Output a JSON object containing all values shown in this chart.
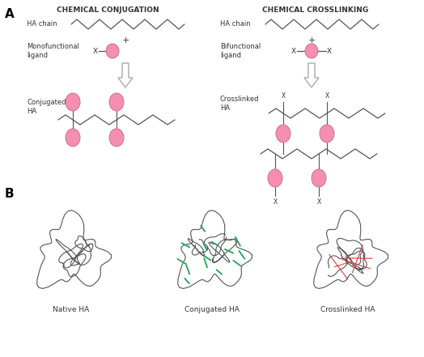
{
  "title_A": "A",
  "title_B": "B",
  "label_chem_conj": "CHEMICAL CONJUGATION",
  "label_chem_cross": "CHEMICAL CROSSLINKING",
  "label_ha_chain": "HA chain",
  "label_mono": "Monofunctional\nligand",
  "label_bi": "Bifunctional\nligand",
  "label_conj_ha": "Conjugated\nHA",
  "label_cross_ha": "Crosslinked\nHA",
  "label_native": "Native HA",
  "label_conjugated": "Conjugated HA",
  "label_crosslinked": "Crosslinked HA",
  "pink_color": "#F48FB1",
  "pink_edge": "#cc7090",
  "chain_color": "#555555",
  "text_color": "#333333",
  "green_color": "#1aaa50",
  "red_color": "#dd3333",
  "bg_color": "#FFFFFF"
}
